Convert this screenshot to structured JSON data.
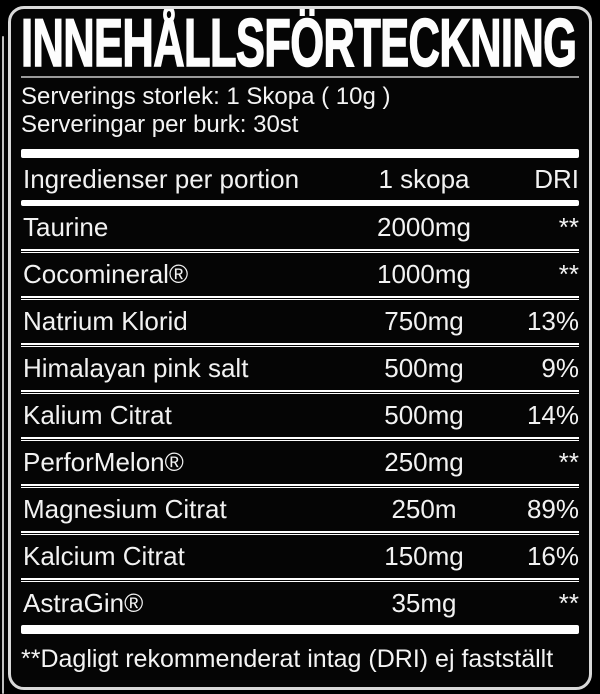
{
  "label": {
    "title": "INNEHÅLLSFÖRTECKNING",
    "serving_size_line": "Serverings storlek: 1 Skopa ( 10g )",
    "servings_per_container_line": "Serveringar per burk: 30st",
    "table": {
      "headers": [
        "Ingredienser per portion",
        "1 skopa",
        "DRI"
      ],
      "rows": [
        {
          "ingredient": "Taurine",
          "amount": "2000mg",
          "dri": "**"
        },
        {
          "ingredient": "Cocomineral®",
          "amount": "1000mg",
          "dri": "**"
        },
        {
          "ingredient": "Natrium Klorid",
          "amount": "750mg",
          "dri": "13%"
        },
        {
          "ingredient": "Himalayan pink salt",
          "amount": "500mg",
          "dri": "9%"
        },
        {
          "ingredient": "Kalium Citrat",
          "amount": "500mg",
          "dri": "14%"
        },
        {
          "ingredient": "PerforMelon®",
          "amount": "250mg",
          "dri": "**"
        },
        {
          "ingredient": "Magnesium Citrat",
          "amount": "250m",
          "dri": "89%"
        },
        {
          "ingredient": "Kalcium Citrat",
          "amount": "150mg",
          "dri": "16%"
        },
        {
          "ingredient": "AstraGin®",
          "amount": "35mg",
          "dri": "**"
        }
      ]
    },
    "footnote": "**Dagligt rekommenderat intag (DRI) ej fastställt",
    "colors": {
      "background": "#000000",
      "panel": "#050505",
      "border": "#d9d9d9",
      "text": "#f2f2f2",
      "rule": "#ffffff"
    }
  }
}
